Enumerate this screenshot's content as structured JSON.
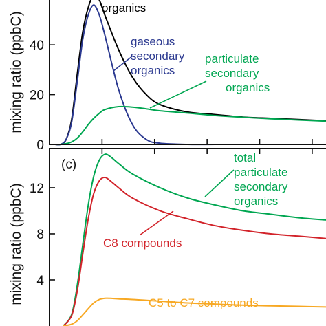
{
  "chart_data": [
    {
      "type": "line",
      "ylabel": "mixing ratio (ppbC)",
      "ylim": [
        0,
        58
      ],
      "xlim": [
        0,
        1
      ],
      "yticks": [
        "0",
        "20",
        "40"
      ],
      "yticks_values": [
        0,
        20,
        40
      ],
      "series": [
        {
          "name": "organics",
          "color": "#000000",
          "x": [
            0.0,
            0.02,
            0.04,
            0.06,
            0.08,
            0.1,
            0.12,
            0.14,
            0.16,
            0.18,
            0.2,
            0.25,
            0.3,
            0.35,
            0.4,
            0.5,
            0.6,
            0.7,
            0.8,
            0.9,
            1.0
          ],
          "y": [
            0,
            0,
            0,
            2,
            10,
            28,
            45,
            55,
            60,
            58,
            52,
            38,
            27,
            20,
            16,
            13,
            12,
            11,
            10.5,
            10,
            9.5
          ]
        },
        {
          "name": "gaseous secondary organics",
          "color": "#2b3990",
          "x": [
            0.0,
            0.02,
            0.04,
            0.06,
            0.08,
            0.1,
            0.12,
            0.14,
            0.16,
            0.18,
            0.2,
            0.25,
            0.3,
            0.35,
            0.4,
            0.5,
            0.6,
            0.7,
            0.8,
            0.9,
            1.0
          ],
          "y": [
            0,
            0,
            0,
            2,
            9,
            25,
            42,
            52,
            56,
            52,
            44,
            22,
            8,
            2,
            0.5,
            0,
            0,
            0,
            0,
            0,
            0
          ]
        },
        {
          "name": "particulate secondary organics",
          "color": "#00a651",
          "x": [
            0.0,
            0.02,
            0.04,
            0.06,
            0.08,
            0.1,
            0.12,
            0.14,
            0.16,
            0.18,
            0.2,
            0.25,
            0.3,
            0.35,
            0.4,
            0.5,
            0.6,
            0.7,
            0.8,
            0.9,
            1.0
          ],
          "y": [
            0,
            0,
            0,
            0.3,
            1,
            2.5,
            5,
            8,
            10.5,
            12.5,
            14,
            15.2,
            15,
            14.3,
            13.5,
            12.6,
            11.6,
            10.9,
            10.3,
            9.8,
            9.3
          ]
        }
      ],
      "annotations": [
        {
          "text": "organics",
          "color": "#000000"
        },
        {
          "text": [
            "gaseous",
            "secondary",
            "organics"
          ],
          "color": "#2b3990"
        },
        {
          "text": [
            "particulate",
            "secondary",
            "organics"
          ],
          "color": "#00a651"
        }
      ]
    },
    {
      "type": "line",
      "panel_label": "(c)",
      "ylabel": "mixing ratio (ppbC)",
      "ylim": [
        0,
        15.4
      ],
      "xlim": [
        0,
        1
      ],
      "yticks": [
        "4",
        "8",
        "12"
      ],
      "yticks_values": [
        4,
        8,
        12
      ],
      "series": [
        {
          "name": "total particulate secondary organics",
          "color": "#00a651",
          "x": [
            0.05,
            0.08,
            0.1,
            0.12,
            0.14,
            0.16,
            0.18,
            0.2,
            0.22,
            0.25,
            0.3,
            0.4,
            0.5,
            0.6,
            0.7,
            0.8,
            0.9,
            1.0
          ],
          "y": [
            0,
            1,
            3.5,
            7,
            10.5,
            13,
            14.4,
            14.9,
            14.7,
            14.1,
            13.2,
            12.0,
            11.1,
            10.5,
            10.0,
            9.7,
            9.4,
            9.2
          ]
        },
        {
          "name": "C8 compounds",
          "color": "#d2232a",
          "x": [
            0.05,
            0.08,
            0.1,
            0.12,
            0.14,
            0.16,
            0.18,
            0.2,
            0.22,
            0.25,
            0.3,
            0.4,
            0.5,
            0.6,
            0.7,
            0.8,
            0.9,
            1.0
          ],
          "y": [
            0,
            0.9,
            3,
            6.2,
            9.3,
            11.5,
            12.6,
            12.9,
            12.6,
            12.0,
            11.1,
            10.0,
            9.3,
            8.7,
            8.3,
            8.0,
            7.8,
            7.6
          ]
        },
        {
          "name": "C5 to C7 compounds",
          "color": "#f7a823",
          "x": [
            0.05,
            0.08,
            0.1,
            0.12,
            0.14,
            0.16,
            0.18,
            0.2,
            0.22,
            0.25,
            0.3,
            0.4,
            0.5,
            0.6,
            0.7,
            0.8,
            0.9,
            1.0
          ],
          "y": [
            0,
            0.15,
            0.45,
            0.95,
            1.5,
            2.0,
            2.3,
            2.4,
            2.4,
            2.35,
            2.3,
            2.15,
            2.0,
            1.9,
            1.8,
            1.75,
            1.7,
            1.65
          ]
        }
      ],
      "annotations": [
        {
          "text": [
            "total",
            "particulate",
            "secondary",
            "organics"
          ],
          "color": "#00a651"
        },
        {
          "text": "C8 compounds",
          "color": "#d2232a"
        },
        {
          "text": "C5 to C7 compounds",
          "color": "#f7a823"
        }
      ]
    }
  ]
}
